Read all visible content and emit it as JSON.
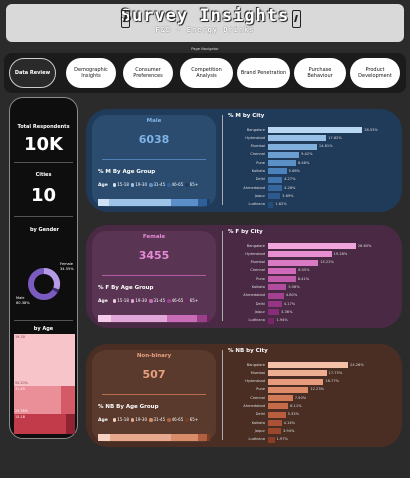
{
  "header": {
    "title": "Survey Insights",
    "subtitle": "F&B - Energy Drinks",
    "icon_left": "energy-can-icon",
    "icon_right": "energy-can-icon"
  },
  "nav": {
    "label": "Page Navigator",
    "buttons": [
      "Data Review",
      "Demographic Insights",
      "Consumer Preferences",
      "Competition Analysis",
      "Brand Penetration",
      "Purchase Behaviour",
      "Product Development"
    ],
    "active_index": 0
  },
  "summary": {
    "total_respondents_label": "Total Respondents",
    "total_respondents_value": "10K",
    "cities_label": "Cities",
    "cities_value": "10",
    "gender_label": "by Gender",
    "gender_female_label": "Female",
    "gender_female_pct": "34.55%",
    "gender_male_label": "Male",
    "gender_male_pct": "60.38%",
    "age_label": "by Age",
    "age_tree": [
      {
        "label": "19-30",
        "pct": "55.20%"
      },
      {
        "label": "31-45",
        "pct": "23.76%"
      },
      {
        "label": "15-18",
        "pct": ""
      }
    ]
  },
  "colors": {
    "male": "#5b8fc9",
    "female": "#c86cb8",
    "nonbinary": "#d98c6a",
    "male_bar": "#9ec3e8",
    "female_bar": "#e3a6d9",
    "nb_bar": "#e8a88d"
  },
  "chart_data": [
    {
      "type": "bar",
      "title": "% M by City",
      "segment": "Male",
      "count": "6038",
      "age_title": "% M By Age Group",
      "categories": [
        "Bangalore",
        "Hyderabad",
        "Mumbai",
        "Chennai",
        "Pune",
        "Kolkata",
        "Delhi",
        "Ahmedabad",
        "Jaipur",
        "Ludhiana"
      ],
      "values": [
        28.55,
        17.62,
        14.81,
        9.42,
        8.48,
        5.66,
        4.27,
        4.26,
        3.69,
        1.62
      ],
      "labels": [
        "28.55%",
        "17.62%",
        "14.81%",
        "9.42%",
        "8.48%",
        "5.66%",
        "4.27%",
        "4.26%",
        "3.69%",
        "1.62%"
      ]
    },
    {
      "type": "bar",
      "title": "% F by City",
      "segment": "Female",
      "count": "3455",
      "age_title": "% F By Age Group",
      "categories": [
        "Bangalore",
        "Hyderabad",
        "Mumbai",
        "Chennai",
        "Pune",
        "Kolkata",
        "Ahmedabad",
        "Delhi",
        "Jaipur",
        "Ludhiana"
      ],
      "values": [
        26.6,
        19.28,
        15.22,
        8.55,
        8.41,
        5.56,
        4.8,
        4.17,
        3.36,
        1.94
      ],
      "labels": [
        "26.60%",
        "19.28%",
        "15.22%",
        "8.55%",
        "8.41%",
        "5.56%",
        "4.80%",
        "4.17%",
        "3.36%",
        "1.94%"
      ]
    },
    {
      "type": "bar",
      "title": "% NB by City",
      "segment": "Non-binary",
      "count": "507",
      "age_title": "% NB By Age Group",
      "categories": [
        "Bangalore",
        "Mumbai",
        "Hyderabad",
        "Pune",
        "Chennai",
        "Ahmedabad",
        "Delhi",
        "Kolkata",
        "Jaipur",
        "Ludhiana"
      ],
      "values": [
        24.26,
        17.75,
        16.77,
        12.23,
        7.5,
        6.11,
        5.33,
        4.14,
        3.94,
        1.97
      ],
      "labels": [
        "24.26%",
        "17.75%",
        "16.77%",
        "12.23%",
        "7.50%",
        "6.11%",
        "5.33%",
        "4.14%",
        "3.94%",
        "1.97%"
      ]
    }
  ],
  "age_legend": {
    "title": "Age",
    "items": [
      "15-18",
      "19-30",
      "31-45",
      "46-65",
      "65+"
    ]
  }
}
